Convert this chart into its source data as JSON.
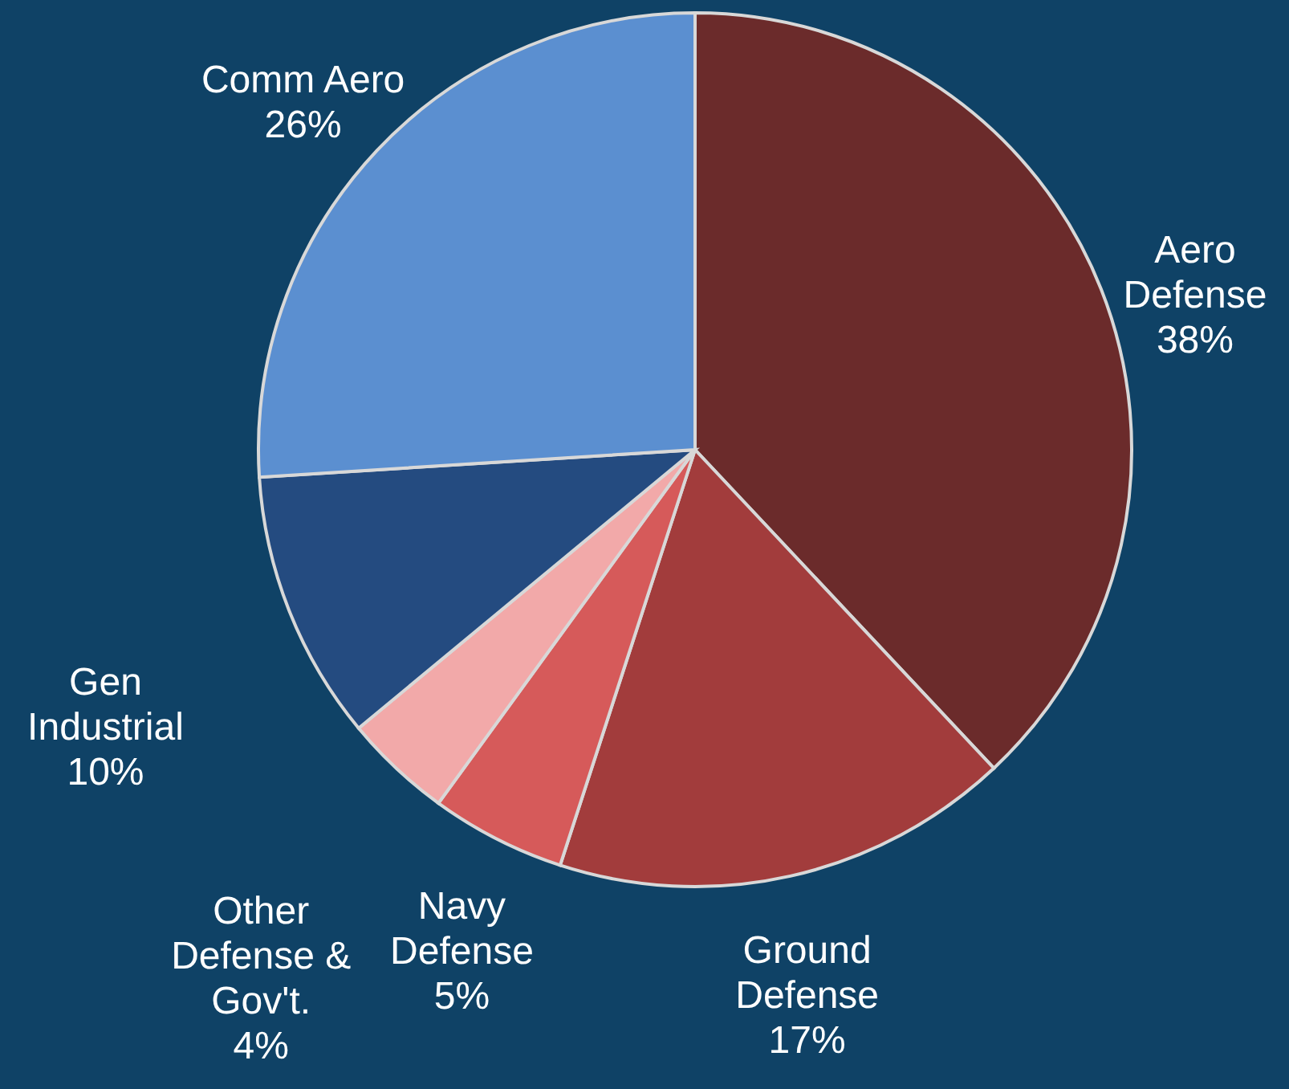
{
  "chart_data": {
    "type": "pie",
    "categories": [
      "Aero Defense",
      "Ground Defense",
      "Navy Defense",
      "Other Defense & Gov't.",
      "Gen Industrial",
      "Comm Aero"
    ],
    "values": [
      38,
      17,
      5,
      4,
      10,
      26
    ],
    "value_labels": [
      "38%",
      "17%",
      "5%",
      "4%",
      "10%",
      "26%"
    ],
    "colors": [
      "#6b2b2b",
      "#a23c3c",
      "#d65a5a",
      "#f2a9a9",
      "#244b80",
      "#5b8fd0"
    ]
  }
}
